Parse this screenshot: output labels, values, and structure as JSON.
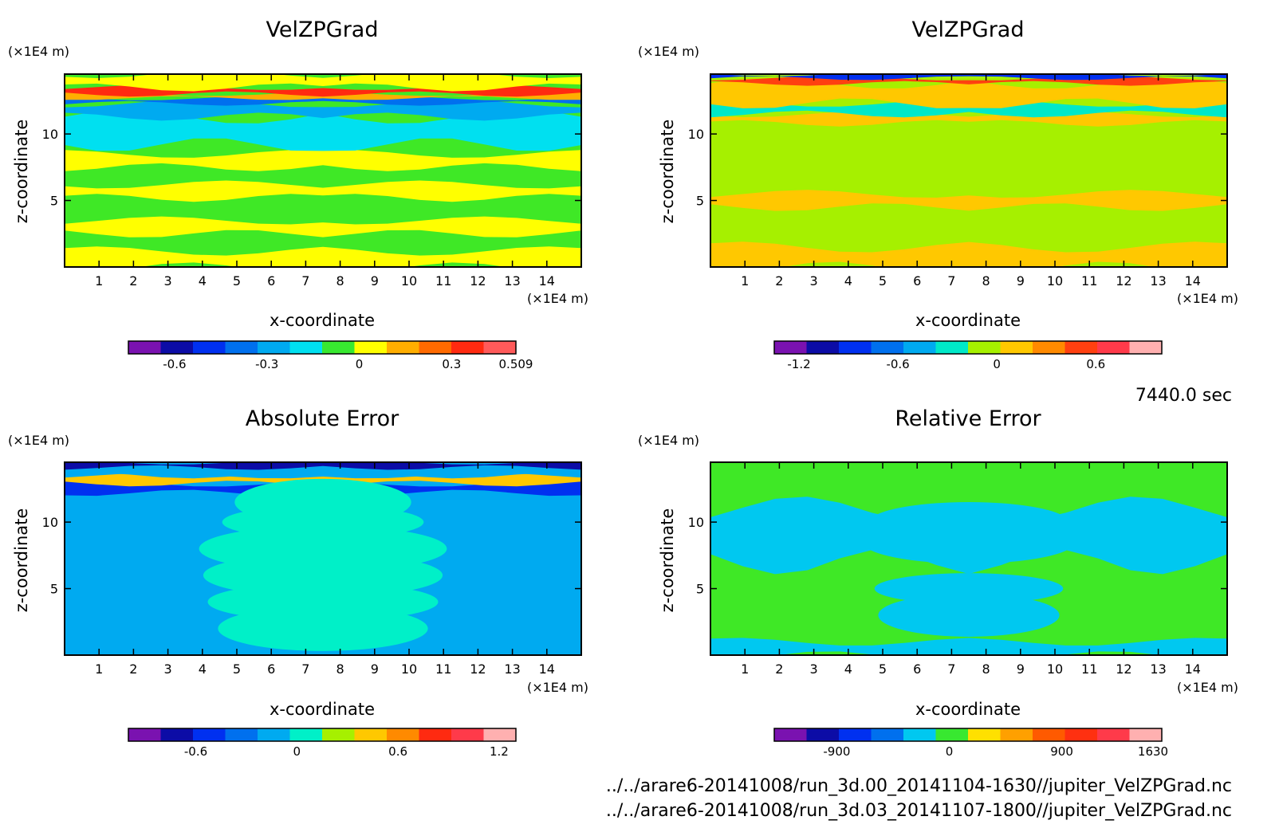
{
  "time_label": "7440.0 sec",
  "file_paths": [
    "../../arare6-20141008/run_3d.00_20141104-1630//jupiter_VelZPGrad.nc",
    "../../arare6-20141008/run_3d.03_20141107-1800//jupiter_VelZPGrad.nc"
  ],
  "chart_data": [
    {
      "type": "heatmap",
      "title": "VelZPGrad",
      "xlabel": "x-coordinate",
      "ylabel": "z-coordinate",
      "x_unit": "(×1E4 m)",
      "y_unit": "(×1E4 m)",
      "xlim": [
        0,
        15
      ],
      "ylim": [
        0,
        14.5
      ],
      "x_ticks": [
        "1",
        "2",
        "3",
        "4",
        "5",
        "6",
        "7",
        "8",
        "9",
        "10",
        "11",
        "12",
        "13",
        "14"
      ],
      "y_ticks": [
        "5",
        "10"
      ],
      "colorbar": {
        "colors": [
          "#7a12b0",
          "#0c0ca6",
          "#0030f0",
          "#0070ee",
          "#00aaf0",
          "#00e0f0",
          "#38e830",
          "#ffff00",
          "#ffae00",
          "#ff6a00",
          "#ff2a10",
          "#ff5a5a"
        ],
        "tick_labels": [
          "-0.6",
          "-0.3",
          "0",
          "0.3",
          "0.509"
        ],
        "range": [
          -0.75,
          0.509
        ]
      },
      "background": "#3fe826",
      "bands": [
        {
          "z0": 0,
          "z1": 1.2,
          "color": "#ffff00"
        },
        {
          "z0": 2.5,
          "z1": 3.5,
          "color": "#ffff00"
        },
        {
          "z0": 5.2,
          "z1": 6.2,
          "color": "#ffff00"
        },
        {
          "z0": 7.5,
          "z1": 8.5,
          "color": "#ffff00"
        },
        {
          "z0": 9.2,
          "z1": 11.3,
          "color": "#00e0f0"
        },
        {
          "z0": 11.3,
          "z1": 12.3,
          "color": "#00aaf0"
        },
        {
          "z0": 12.3,
          "z1": 12.7,
          "color": "#0070ee"
        },
        {
          "z0": 12.7,
          "z1": 13.0,
          "color": "#ffae00"
        },
        {
          "z0": 13.0,
          "z1": 13.5,
          "color": "#ff2a10"
        },
        {
          "z0": 13.5,
          "z1": 14.5,
          "color": "#ffff00"
        }
      ]
    },
    {
      "type": "heatmap",
      "title": "VelZPGrad",
      "xlabel": "x-coordinate",
      "ylabel": "z-coordinate",
      "x_unit": "(×1E4 m)",
      "y_unit": "(×1E4 m)",
      "xlim": [
        0,
        15
      ],
      "ylim": [
        0,
        14.5
      ],
      "x_ticks": [
        "1",
        "2",
        "3",
        "4",
        "5",
        "6",
        "7",
        "8",
        "9",
        "10",
        "11",
        "12",
        "13",
        "14"
      ],
      "y_ticks": [
        "5",
        "10"
      ],
      "colorbar": {
        "colors": [
          "#7a12b0",
          "#0c0ca6",
          "#0030f0",
          "#0070ee",
          "#00aaf0",
          "#00e8c8",
          "#a6f000",
          "#ffc800",
          "#ff8a00",
          "#ff4010",
          "#ff3a4a",
          "#ffb0b0"
        ],
        "tick_labels": [
          "-1.2",
          "-0.6",
          "0",
          "0.6"
        ],
        "range": [
          -1.35,
          1.0
        ]
      },
      "background": "#a6f000",
      "bands": [
        {
          "z0": 0,
          "z1": 1.5,
          "color": "#ffc800"
        },
        {
          "z0": 4.5,
          "z1": 5.5,
          "color": "#ffc800"
        },
        {
          "z0": 10.8,
          "z1": 11.5,
          "color": "#ffc800"
        },
        {
          "z0": 11.5,
          "z1": 12.3,
          "color": "#00e8c8"
        },
        {
          "z0": 12.3,
          "z1": 13.8,
          "color": "#ffc800"
        },
        {
          "z0": 13.8,
          "z1": 14.2,
          "color": "#ff4010"
        },
        {
          "z0": 14.2,
          "z1": 14.5,
          "color": "#0030f0"
        }
      ]
    },
    {
      "type": "heatmap",
      "title": "Absolute Error",
      "xlabel": "x-coordinate",
      "ylabel": "z-coordinate",
      "x_unit": "(×1E4 m)",
      "y_unit": "(×1E4 m)",
      "xlim": [
        0,
        15
      ],
      "ylim": [
        0,
        14.5
      ],
      "x_ticks": [
        "1",
        "2",
        "3",
        "4",
        "5",
        "6",
        "7",
        "8",
        "9",
        "10",
        "11",
        "12",
        "13",
        "14"
      ],
      "y_ticks": [
        "5",
        "10"
      ],
      "colorbar": {
        "colors": [
          "#7a12b0",
          "#0c0ca6",
          "#0030f0",
          "#0070ee",
          "#00aaf0",
          "#00f0c8",
          "#a6f000",
          "#ffc800",
          "#ff8a00",
          "#ff2a10",
          "#ff3a4a",
          "#ffb0b0"
        ],
        "tick_labels": [
          "-0.6",
          "0",
          "0.6",
          "1.2"
        ],
        "range": [
          -1.0,
          1.3
        ]
      },
      "background": "#00aaf0",
      "bands": [
        {
          "z0": 12.2,
          "z1": 12.9,
          "color": "#0030f0"
        },
        {
          "z0": 12.9,
          "z1": 13.5,
          "color": "#ffc800"
        },
        {
          "z0": 13.5,
          "z1": 14.1,
          "color": "#00aaf0"
        },
        {
          "z0": 14.1,
          "z1": 14.5,
          "color": "#0c0ca6"
        }
      ],
      "blobs_color": "#00f0c8"
    },
    {
      "type": "heatmap",
      "title": "Relative Error",
      "xlabel": "x-coordinate",
      "ylabel": "z-coordinate",
      "x_unit": "(×1E4 m)",
      "y_unit": "(×1E4 m)",
      "xlim": [
        0,
        15
      ],
      "ylim": [
        0,
        14.5
      ],
      "x_ticks": [
        "1",
        "2",
        "3",
        "4",
        "5",
        "6",
        "7",
        "8",
        "9",
        "10",
        "11",
        "12",
        "13",
        "14"
      ],
      "y_ticks": [
        "5",
        "10"
      ],
      "colorbar": {
        "colors": [
          "#7a12b0",
          "#0c0ca6",
          "#0030f0",
          "#0070ee",
          "#00c8f0",
          "#38e830",
          "#ffe000",
          "#ffa000",
          "#ff5a00",
          "#ff3010",
          "#ff3a4a",
          "#ffb0b0"
        ],
        "tick_labels": [
          "-900",
          "0",
          "900",
          "1630"
        ],
        "range": [
          -1400,
          1700
        ]
      },
      "background": "#3fe826",
      "bands": [
        {
          "z0": 0,
          "z1": 1.0,
          "color": "#00c8f0"
        },
        {
          "z0": 7.0,
          "z1": 11.0,
          "color": "#00c8f0"
        }
      ],
      "blobs_color": "#00c8f0"
    }
  ]
}
